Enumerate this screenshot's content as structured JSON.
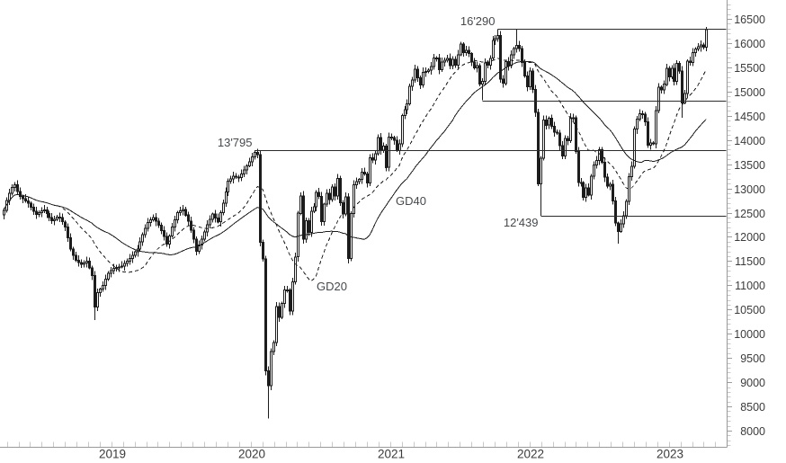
{
  "chart_data": {
    "type": "candlestick",
    "instrument_hint": "weekly index chart",
    "x_axis": {
      "granularity": "weekly",
      "years": [
        "2019",
        "2020",
        "2021",
        "2022",
        "2023"
      ],
      "minor_tick": "monthly",
      "grid": false
    },
    "y_axis": {
      "min": 8000,
      "max": 16500,
      "label_step": 500,
      "minor_step": 100,
      "side": "right",
      "labels": [
        16500,
        16000,
        15500,
        15000,
        14500,
        14000,
        13500,
        13000,
        12500,
        12000,
        11500,
        11000,
        10500,
        10000,
        9500,
        9000,
        8500,
        8000
      ]
    },
    "moving_averages": [
      {
        "label": "GD40",
        "window": 40,
        "style": "solid"
      },
      {
        "label": "GD20",
        "window": 20,
        "style": "dashed"
      }
    ],
    "levels": [
      {
        "label": "16'290",
        "price": 16290,
        "starts_week": 185,
        "label_position": "above"
      },
      {
        "label": "",
        "price": 14818,
        "starts_week": 179,
        "label_position": "none"
      },
      {
        "label": "13'795",
        "price": 13795,
        "starts_week": 94,
        "label_position": "above"
      },
      {
        "label": "12'439",
        "price": 12439,
        "starts_week": 201,
        "label_position": "below"
      }
    ],
    "first_open": 12450,
    "weekly_closes": [
      12550,
      12750,
      12900,
      13020,
      13080,
      12940,
      12830,
      12790,
      12740,
      12700,
      12610,
      12530,
      12460,
      12500,
      12540,
      12560,
      12480,
      12400,
      12330,
      12360,
      12410,
      12400,
      12310,
      12200,
      11980,
      11750,
      11620,
      11520,
      11470,
      11430,
      11460,
      11500,
      11360,
      11200,
      10550,
      10850,
      10920,
      11000,
      11130,
      11250,
      11300,
      11350,
      11370,
      11380,
      11400,
      11450,
      11500,
      11550,
      11620,
      11690,
      11750,
      11900,
      12050,
      12180,
      12300,
      12350,
      12400,
      12320,
      12240,
      12130,
      12010,
      11850,
      12020,
      12200,
      12350,
      12500,
      12540,
      12570,
      12450,
      12320,
      12140,
      11950,
      11700,
      11830,
      11950,
      12100,
      12250,
      12360,
      12470,
      12390,
      12310,
      12500,
      12700,
      12930,
      13150,
      13200,
      13250,
      13235,
      13220,
      13300,
      13380,
      13470,
      13550,
      13650,
      13744,
      13700,
      11890,
      11542,
      9232,
      8929,
      9632,
      9816,
      10565,
      10336,
      10626,
      10904,
      10905,
      10466,
      11074,
      11586,
      12487,
      12848,
      11950,
      12331,
      12090,
      12528,
      12620,
      12920,
      12838,
      12313,
      12675,
      12901,
      12765,
      13033,
      12843,
      13203,
      12705,
      12469,
      12828,
      11556,
      12480,
      13077,
      13137,
      13186,
      13336,
      13299,
      13114,
      13631,
      13587,
      13719,
      14049,
      13788,
      13874,
      13433,
      14057,
      14050,
      13993,
      13786,
      13921,
      14502,
      14621,
      14749,
      15107,
      15234,
      15460,
      15280,
      15136,
      15400,
      15417,
      15438,
      15520,
      15693,
      15693,
      15448,
      15608,
      15650,
      15688,
      15540,
      15669,
      15544,
      15761,
      15977,
      15808,
      15852,
      15781,
      15610,
      15490,
      15532,
      15156,
      15206,
      15587,
      15542,
      15688,
      16054,
      16094,
      16160,
      15257,
      15169,
      15623,
      15531,
      15757,
      15885,
      15948,
      15883,
      15603,
      15319,
      15099,
      15425,
      15043,
      14567,
      13095,
      13628,
      14413,
      14306,
      14446,
      14284,
      14163,
      14142,
      13882,
      13674,
      14028,
      13982,
      14462,
      14460,
      13762,
      13126,
      13118,
      12813,
      13015,
      12865,
      13254,
      13484,
      13574,
      13796,
      13544,
      13230,
      13050,
      13088,
      12741,
      12284,
      12114,
      12273,
      12438,
      12731,
      13243,
      13460,
      14224,
      14432,
      14541,
      14529,
      14371,
      13894,
      13941,
      13924,
      14610,
      15087,
      15034,
      15150,
      15476,
      15308,
      15482,
      15210,
      15578,
      15428,
      14768,
      14957,
      15629,
      15598,
      15808,
      15882,
      15922,
      15961,
      15914,
      16275
    ],
    "wick_overrides": {
      "34": {
        "low": 10279
      },
      "94": {
        "high": 13795
      },
      "99": {
        "low": 8255
      },
      "129": {
        "low": 11450
      },
      "171": {
        "high": 16030
      },
      "179": {
        "low": 14819
      },
      "185": {
        "high": 16290
      },
      "192": {
        "high": 16285
      },
      "201": {
        "low": 12439
      },
      "230": {
        "low": 11862
      },
      "254": {
        "low": 14458
      },
      "263": {
        "high": 16332
      }
    }
  },
  "colors": {
    "background": "#ffffff",
    "candle": "#1c1c1c",
    "axis": "#999999",
    "tick": "#c9c9c9",
    "major_tick": "#9c9c9c",
    "label": "#3b3b3b",
    "annotation": "#46494c",
    "level_line": "#2b2b2b"
  }
}
